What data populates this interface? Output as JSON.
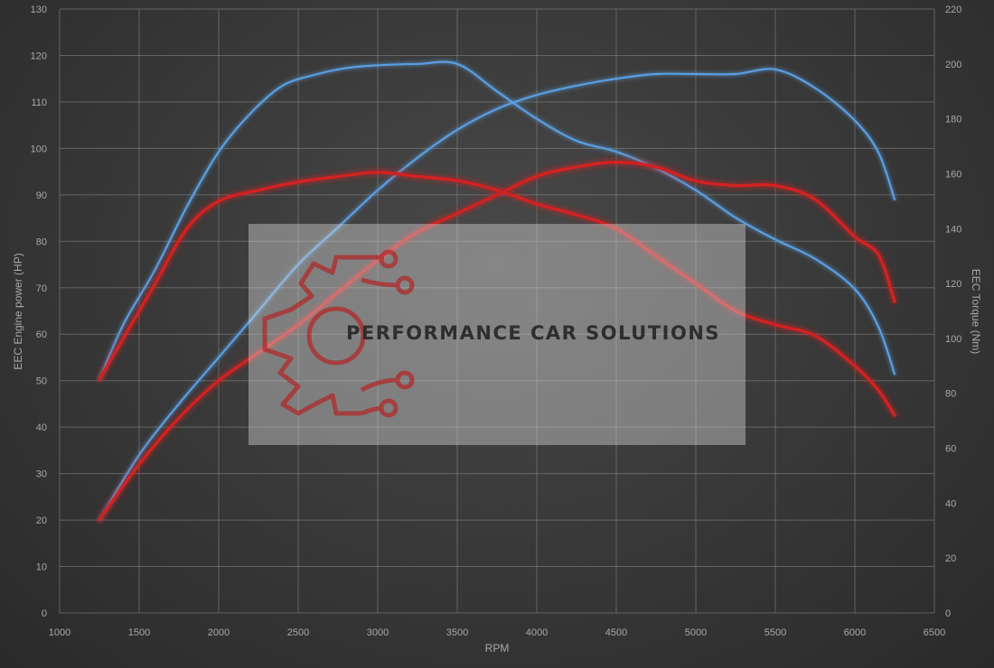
{
  "chart_data": {
    "type": "line",
    "xlabel": "RPM",
    "ylabel_left": "EEC Engine power (HP)",
    "ylabel_right": "EEC Torque (Nm)",
    "xlim": [
      1000,
      6500
    ],
    "ylim_left": [
      0,
      130
    ],
    "ylim_right": [
      0,
      220
    ],
    "x_ticks": [
      1000,
      1500,
      2000,
      2500,
      3000,
      3500,
      4000,
      4500,
      5000,
      5500,
      6000,
      6500
    ],
    "y_left_ticks": [
      0,
      10,
      20,
      30,
      40,
      50,
      60,
      70,
      80,
      90,
      100,
      110,
      120,
      130
    ],
    "y_right_ticks": [
      0,
      20,
      40,
      60,
      80,
      100,
      120,
      140,
      160,
      180,
      200,
      220
    ],
    "grid": true,
    "legend": "none",
    "series": [
      {
        "axis": "left",
        "color": "#5a9ee0",
        "x": [
          1250,
          1500,
          1750,
          2000,
          2250,
          2500,
          2750,
          3000,
          3250,
          3500,
          3750,
          4000,
          4250,
          4500,
          4750,
          5000,
          5250,
          5500,
          5750,
          6000,
          6150,
          6250
        ],
        "y": [
          20,
          34,
          45,
          55,
          65,
          75,
          83,
          91,
          98,
          104,
          108.5,
          111.5,
          113.5,
          115,
          116,
          116,
          116,
          117,
          113,
          106,
          99,
          89
        ]
      },
      {
        "axis": "right",
        "color": "#5a9ee0",
        "x": [
          1250,
          1400,
          1600,
          1800,
          2000,
          2200,
          2400,
          2600,
          2800,
          3000,
          3250,
          3500,
          3750,
          4000,
          4250,
          4500,
          4750,
          5000,
          5250,
          5500,
          5750,
          6000,
          6150,
          6250
        ],
        "y": [
          85,
          105,
          125,
          148,
          168,
          182,
          192,
          196,
          198.5,
          199.5,
          200,
          200,
          190,
          180,
          172,
          168,
          162,
          154,
          144,
          136,
          129,
          118,
          104,
          87
        ]
      },
      {
        "axis": "left",
        "color": "#d02020",
        "x": [
          1250,
          1500,
          1750,
          2000,
          2250,
          2500,
          2750,
          3000,
          3250,
          3500,
          3750,
          4000,
          4250,
          4500,
          4750,
          5000,
          5250,
          5500,
          5750,
          6000,
          6150,
          6250
        ],
        "y": [
          20,
          32,
          42,
          50,
          56,
          62,
          69,
          76,
          82,
          86,
          90,
          94,
          96,
          97,
          96,
          93,
          92,
          92,
          89,
          81,
          77,
          67
        ]
      },
      {
        "axis": "right",
        "color": "#d02020",
        "x": [
          1250,
          1400,
          1600,
          1800,
          2000,
          2250,
          2500,
          2750,
          3000,
          3250,
          3500,
          3750,
          4000,
          4250,
          4500,
          4750,
          5000,
          5250,
          5500,
          5750,
          6000,
          6150,
          6250
        ],
        "y": [
          85,
          100,
          120,
          140,
          150,
          154,
          157,
          159,
          160.5,
          159,
          157.5,
          154,
          149,
          145,
          140,
          130,
          120,
          110,
          105,
          101,
          90,
          81,
          72
        ]
      }
    ]
  },
  "watermark": {
    "text": "PERFORMANCE CAR SOLUTIONS",
    "logo_color": "#b02a2a",
    "box_color": "#d8d8d8"
  }
}
